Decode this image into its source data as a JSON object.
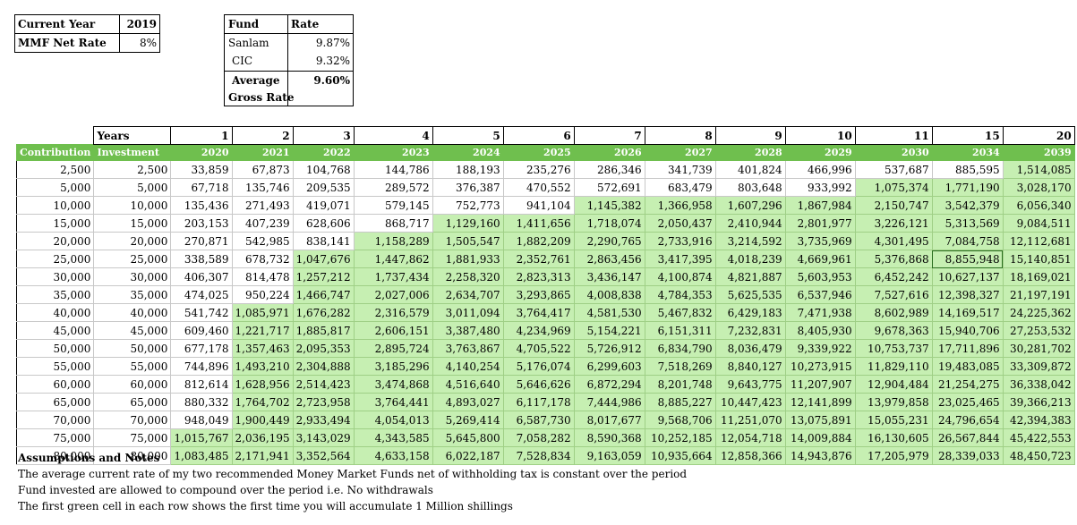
{
  "summary": {
    "current_year_label": "Current Year",
    "current_year": "2019",
    "mmf_label": "MMF Net Rate",
    "mmf_rate": "8%"
  },
  "funds": {
    "header_fund": "Fund",
    "header_rate": "Rate",
    "rows": [
      {
        "name": "Sanlam",
        "rate": "9.87%"
      },
      {
        "name": "CIC",
        "rate": "9.32%"
      }
    ],
    "average_label_1": "Average",
    "average_label_2": "Gross Rate",
    "average_rate": "9.60%"
  },
  "table": {
    "years_label": "Years",
    "years": [
      "1",
      "2",
      "3",
      "4",
      "5",
      "6",
      "7",
      "8",
      "9",
      "10",
      "11",
      "15",
      "20"
    ],
    "contribution_label": "Contribution",
    "investment_label": "Investment",
    "calendar_years": [
      "2020",
      "2021",
      "2022",
      "2023",
      "2024",
      "2025",
      "2026",
      "2027",
      "2028",
      "2029",
      "2030",
      "2034",
      "2039"
    ],
    "rows": [
      {
        "c": "2,500",
        "i": "2,500",
        "v": [
          "33,859",
          "67,873",
          "104,768",
          "144,786",
          "188,193",
          "235,276",
          "286,346",
          "341,739",
          "401,824",
          "466,996",
          "537,687",
          "885,595",
          "1,514,085"
        ],
        "g": 12
      },
      {
        "c": "5,000",
        "i": "5,000",
        "v": [
          "67,718",
          "135,746",
          "209,535",
          "289,572",
          "376,387",
          "470,552",
          "572,691",
          "683,479",
          "803,648",
          "933,992",
          "1,075,374",
          "1,771,190",
          "3,028,170"
        ],
        "g": 10
      },
      {
        "c": "10,000",
        "i": "10,000",
        "v": [
          "135,436",
          "271,493",
          "419,071",
          "579,145",
          "752,773",
          "941,104",
          "1,145,382",
          "1,366,958",
          "1,607,296",
          "1,867,984",
          "2,150,747",
          "3,542,379",
          "6,056,340"
        ],
        "g": 6
      },
      {
        "c": "15,000",
        "i": "15,000",
        "v": [
          "203,153",
          "407,239",
          "628,606",
          "868,717",
          "1,129,160",
          "1,411,656",
          "1,718,074",
          "2,050,437",
          "2,410,944",
          "2,801,977",
          "3,226,121",
          "5,313,569",
          "9,084,511"
        ],
        "g": 4
      },
      {
        "c": "20,000",
        "i": "20,000",
        "v": [
          "270,871",
          "542,985",
          "838,141",
          "1,158,289",
          "1,505,547",
          "1,882,209",
          "2,290,765",
          "2,733,916",
          "3,214,592",
          "3,735,969",
          "4,301,495",
          "7,084,758",
          "12,112,681"
        ],
        "g": 3
      },
      {
        "c": "25,000",
        "i": "25,000",
        "v": [
          "338,589",
          "678,732",
          "1,047,676",
          "1,447,862",
          "1,881,933",
          "2,352,761",
          "2,863,456",
          "3,417,395",
          "4,018,239",
          "4,669,961",
          "5,376,868",
          "8,855,948",
          "15,140,851"
        ],
        "g": 2
      },
      {
        "c": "30,000",
        "i": "30,000",
        "v": [
          "406,307",
          "814,478",
          "1,257,212",
          "1,737,434",
          "2,258,320",
          "2,823,313",
          "3,436,147",
          "4,100,874",
          "4,821,887",
          "5,603,953",
          "6,452,242",
          "10,627,137",
          "18,169,021"
        ],
        "g": 2
      },
      {
        "c": "35,000",
        "i": "35,000",
        "v": [
          "474,025",
          "950,224",
          "1,466,747",
          "2,027,006",
          "2,634,707",
          "3,293,865",
          "4,008,838",
          "4,784,353",
          "5,625,535",
          "6,537,946",
          "7,527,616",
          "12,398,327",
          "21,197,191"
        ],
        "g": 2
      },
      {
        "c": "40,000",
        "i": "40,000",
        "v": [
          "541,742",
          "1,085,971",
          "1,676,282",
          "2,316,579",
          "3,011,094",
          "3,764,417",
          "4,581,530",
          "5,467,832",
          "6,429,183",
          "7,471,938",
          "8,602,989",
          "14,169,517",
          "24,225,362"
        ],
        "g": 1
      },
      {
        "c": "45,000",
        "i": "45,000",
        "v": [
          "609,460",
          "1,221,717",
          "1,885,817",
          "2,606,151",
          "3,387,480",
          "4,234,969",
          "5,154,221",
          "6,151,311",
          "7,232,831",
          "8,405,930",
          "9,678,363",
          "15,940,706",
          "27,253,532"
        ],
        "g": 1
      },
      {
        "c": "50,000",
        "i": "50,000",
        "v": [
          "677,178",
          "1,357,463",
          "2,095,353",
          "2,895,724",
          "3,763,867",
          "4,705,522",
          "5,726,912",
          "6,834,790",
          "8,036,479",
          "9,339,922",
          "10,753,737",
          "17,711,896",
          "30,281,702"
        ],
        "g": 1
      },
      {
        "c": "55,000",
        "i": "55,000",
        "v": [
          "744,896",
          "1,493,210",
          "2,304,888",
          "3,185,296",
          "4,140,254",
          "5,176,074",
          "6,299,603",
          "7,518,269",
          "8,840,127",
          "10,273,915",
          "11,829,110",
          "19,483,085",
          "33,309,872"
        ],
        "g": 1
      },
      {
        "c": "60,000",
        "i": "60,000",
        "v": [
          "812,614",
          "1,628,956",
          "2,514,423",
          "3,474,868",
          "4,516,640",
          "5,646,626",
          "6,872,294",
          "8,201,748",
          "9,643,775",
          "11,207,907",
          "12,904,484",
          "21,254,275",
          "36,338,042"
        ],
        "g": 1
      },
      {
        "c": "65,000",
        "i": "65,000",
        "v": [
          "880,332",
          "1,764,702",
          "2,723,958",
          "3,764,441",
          "4,893,027",
          "6,117,178",
          "7,444,986",
          "8,885,227",
          "10,447,423",
          "12,141,899",
          "13,979,858",
          "23,025,465",
          "39,366,213"
        ],
        "g": 1
      },
      {
        "c": "70,000",
        "i": "70,000",
        "v": [
          "948,049",
          "1,900,449",
          "2,933,494",
          "4,054,013",
          "5,269,414",
          "6,587,730",
          "8,017,677",
          "9,568,706",
          "11,251,070",
          "13,075,891",
          "15,055,231",
          "24,796,654",
          "42,394,383"
        ],
        "g": 1
      },
      {
        "c": "75,000",
        "i": "75,000",
        "v": [
          "1,015,767",
          "2,036,195",
          "3,143,029",
          "4,343,585",
          "5,645,800",
          "7,058,282",
          "8,590,368",
          "10,252,185",
          "12,054,718",
          "14,009,884",
          "16,130,605",
          "26,567,844",
          "45,422,553"
        ],
        "g": 0
      },
      {
        "c": "80,000",
        "i": "80,000",
        "v": [
          "1,083,485",
          "2,171,941",
          "3,352,564",
          "4,633,158",
          "6,022,187",
          "7,528,834",
          "9,163,059",
          "10,935,664",
          "12,858,366",
          "14,943,876",
          "17,205,979",
          "28,339,033",
          "48,450,723"
        ],
        "g": 0
      }
    ],
    "selected_row": 5,
    "selected_col": 11
  },
  "notes": {
    "title": "Assumptions and Notes",
    "lines": [
      "The average current rate of my two recommended Money Market Funds net of withholding tax is constant over the period",
      "Fund invested are allowed to compound over the period i.e. No withdrawals",
      "The first green cell in each row shows the first time you will accumulate 1 Million shillings"
    ]
  }
}
